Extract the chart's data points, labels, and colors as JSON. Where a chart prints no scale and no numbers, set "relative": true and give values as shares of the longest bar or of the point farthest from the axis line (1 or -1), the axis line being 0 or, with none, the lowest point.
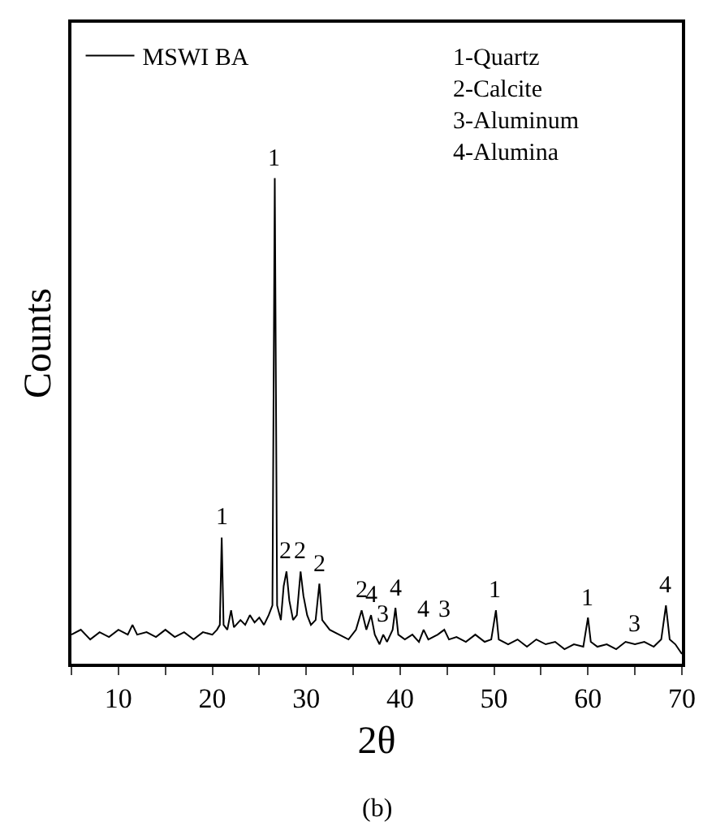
{
  "chart_data": {
    "type": "line",
    "relative": true,
    "xlabel": "2θ",
    "ylabel": "Counts",
    "legend": "top left",
    "marker": "none",
    "line_style": "solid",
    "xlim": [
      5,
      70
    ],
    "xticks": [
      {
        "value": 5,
        "label": null
      },
      10,
      {
        "value": 15,
        "label": null
      },
      20,
      {
        "value": 25,
        "label": null
      },
      30,
      {
        "value": 35,
        "label": null
      },
      40,
      {
        "value": 45,
        "label": null
      },
      50,
      {
        "value": 55,
        "label": null
      },
      60,
      {
        "value": 65,
        "label": null
      },
      70
    ],
    "series": [
      {
        "name": "MSWI BA",
        "color": "#000000",
        "x": [
          5,
          6,
          7,
          8,
          9,
          10,
          11,
          11.5,
          12,
          13,
          14,
          15,
          16,
          17,
          18,
          19,
          20,
          20.5,
          20.8,
          21.0,
          21.2,
          21.6,
          22.0,
          22.3,
          23,
          23.5,
          24,
          24.5,
          25,
          25.5,
          26,
          26.4,
          26.65,
          26.9,
          27.3,
          27.6,
          27.9,
          28.2,
          28.6,
          29.0,
          29.4,
          29.7,
          30.1,
          30.5,
          31.0,
          31.4,
          31.7,
          32.5,
          33.5,
          34.5,
          35.3,
          35.9,
          36.4,
          36.9,
          37.3,
          37.8,
          38.2,
          38.6,
          39.2,
          39.5,
          39.8,
          40.5,
          41.3,
          42,
          42.5,
          43,
          44,
          44.7,
          45.2,
          46,
          47,
          48,
          49,
          49.7,
          50.2,
          50.5,
          51.5,
          52.5,
          53.5,
          54.5,
          55.5,
          56.5,
          57.5,
          58.5,
          59.5,
          60.0,
          60.3,
          61,
          62,
          63,
          64,
          65,
          66,
          67,
          67.8,
          68.3,
          68.7,
          69.3,
          70
        ],
        "values": [
          0.06,
          0.07,
          0.05,
          0.065,
          0.055,
          0.07,
          0.06,
          0.08,
          0.06,
          0.065,
          0.055,
          0.07,
          0.055,
          0.065,
          0.05,
          0.065,
          0.06,
          0.07,
          0.08,
          0.26,
          0.08,
          0.07,
          0.11,
          0.075,
          0.09,
          0.08,
          0.1,
          0.085,
          0.095,
          0.08,
          0.1,
          0.12,
          1.0,
          0.12,
          0.09,
          0.16,
          0.19,
          0.13,
          0.09,
          0.1,
          0.19,
          0.14,
          0.1,
          0.08,
          0.09,
          0.165,
          0.09,
          0.07,
          0.06,
          0.05,
          0.07,
          0.11,
          0.07,
          0.1,
          0.06,
          0.04,
          0.06,
          0.045,
          0.07,
          0.115,
          0.06,
          0.05,
          0.06,
          0.045,
          0.07,
          0.05,
          0.06,
          0.07,
          0.05,
          0.055,
          0.045,
          0.06,
          0.045,
          0.05,
          0.11,
          0.05,
          0.04,
          0.05,
          0.035,
          0.05,
          0.04,
          0.045,
          0.03,
          0.04,
          0.035,
          0.095,
          0.045,
          0.035,
          0.04,
          0.03,
          0.045,
          0.04,
          0.045,
          0.035,
          0.05,
          0.12,
          0.05,
          0.04,
          0.02
        ]
      }
    ],
    "annotations": [
      "1-Quartz\n2-Calcite\n3-Aluminum\n4-Alumina",
      "(b)",
      {
        "text": "1",
        "x": 21.0,
        "y": 0.26
      },
      {
        "text": "1",
        "x": 26.65,
        "y": 1.0
      },
      {
        "text": "2",
        "x": 27.9,
        "y": 0.19
      },
      {
        "text": "2",
        "x": 29.4,
        "y": 0.19
      },
      {
        "text": "2",
        "x": 31.4,
        "y": 0.165
      },
      {
        "text": "2",
        "x": 35.9,
        "y": 0.11
      },
      {
        "text": "4",
        "x": 36.9,
        "y": 0.1
      },
      {
        "text": "3",
        "x": 38.2,
        "y": 0.06
      },
      {
        "text": "4",
        "x": 39.5,
        "y": 0.115
      },
      {
        "text": "4",
        "x": 42.5,
        "y": 0.07
      },
      {
        "text": "3",
        "x": 44.7,
        "y": 0.07
      },
      {
        "text": "1",
        "x": 50.2,
        "y": 0.11
      },
      {
        "text": "1",
        "x": 60.0,
        "y": 0.095
      },
      {
        "text": "3",
        "x": 65,
        "y": 0.04
      },
      {
        "text": "4",
        "x": 68.3,
        "y": 0.12
      }
    ]
  }
}
